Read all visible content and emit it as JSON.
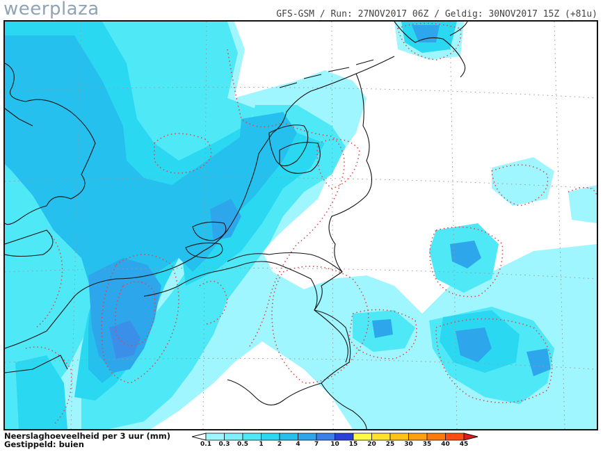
{
  "header": {
    "logo": "weerplaza",
    "run_info": "GFS-GSM / Run: 27NOV2017 06Z / Geldig: 30NOV2017 15Z (+81u)"
  },
  "legend": {
    "line1": "Neerslaghoeveelheid per 3 uur (mm)",
    "line2": "Gestippeld: buien",
    "ticks": [
      "0.1",
      "0.3",
      "0.5",
      "1",
      "2",
      "4",
      "7",
      "10",
      "15",
      "20",
      "25",
      "30",
      "35",
      "40",
      "45"
    ],
    "colors": [
      "#9ff6ff",
      "#7ff0fb",
      "#4fe8f7",
      "#2bd8f2",
      "#25c0ee",
      "#2ea6eb",
      "#3b7fe8",
      "#2b40d8",
      "#fffb45",
      "#ffe12e",
      "#ffc318",
      "#ffa010",
      "#ff7a0c",
      "#ff4d10",
      "#e21c1c"
    ]
  },
  "map": {
    "region": "Belgium / Netherlands / northern France",
    "precip_colors": {
      "light": "#9ff6ff",
      "mid": "#4fe8f7",
      "cyan": "#2bd8f2",
      "blue": "#25c0ee",
      "deep": "#2ea6eb",
      "deeper": "#3b8fe8"
    },
    "showers_contour_color": "#e04848",
    "border_color": "#111111",
    "grid_color": "#9a9a9a"
  }
}
